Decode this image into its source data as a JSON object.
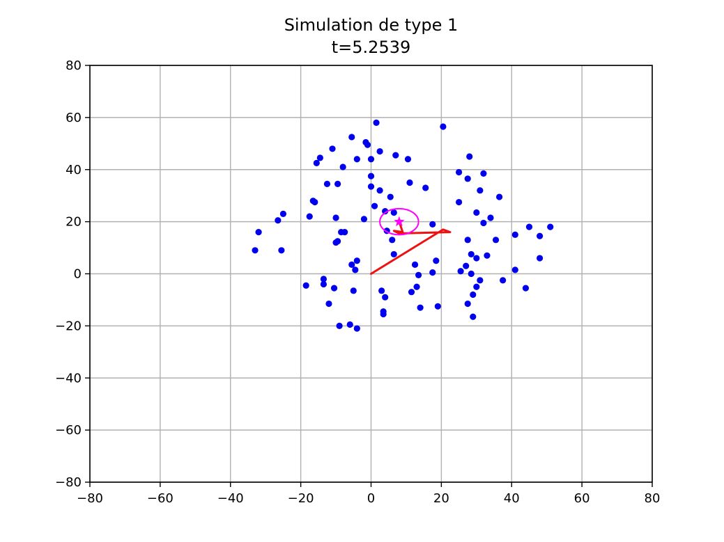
{
  "chart_data": {
    "type": "scatter",
    "title": "Simulation de type 1",
    "subtitle": "t=5.2539",
    "xlabel": "",
    "ylabel": "",
    "xlim": [
      -80,
      80
    ],
    "ylim": [
      -80,
      80
    ],
    "grid": true,
    "xticks": [
      "−80",
      "−60",
      "−40",
      "−20",
      "0",
      "20",
      "40",
      "60",
      "80"
    ],
    "yticks": [
      "80",
      "60",
      "40",
      "20",
      "0",
      "−20",
      "−40",
      "−60",
      "−80"
    ],
    "colors": {
      "points": "#0000ee",
      "path": "#ee1111",
      "target": "#ff00ff",
      "grid": "#b0b0b0"
    },
    "points": [
      [
        1.5,
        58
      ],
      [
        20.5,
        56.5
      ],
      [
        -5.5,
        52.5
      ],
      [
        -1.5,
        50.5
      ],
      [
        -1,
        49.5
      ],
      [
        -11,
        48
      ],
      [
        2.5,
        47
      ],
      [
        7,
        45.5
      ],
      [
        10.5,
        44
      ],
      [
        -14.5,
        44.5
      ],
      [
        -15.5,
        42.5
      ],
      [
        -8,
        41
      ],
      [
        -4,
        44
      ],
      [
        0,
        44
      ],
      [
        28,
        45
      ],
      [
        25,
        39
      ],
      [
        32,
        38.5
      ],
      [
        27.5,
        36.5
      ],
      [
        0,
        37.5
      ],
      [
        -12.5,
        34.5
      ],
      [
        -9.5,
        34.5
      ],
      [
        11,
        35
      ],
      [
        15.5,
        33
      ],
      [
        31,
        32
      ],
      [
        0,
        33.5
      ],
      [
        2.5,
        32
      ],
      [
        5.5,
        29.5
      ],
      [
        36.5,
        29.5
      ],
      [
        -16.5,
        28
      ],
      [
        -16,
        27.5
      ],
      [
        25,
        27.5
      ],
      [
        1,
        26
      ],
      [
        30,
        23.5
      ],
      [
        -25,
        23
      ],
      [
        4,
        24
      ],
      [
        6.5,
        23.5
      ],
      [
        -10,
        21.5
      ],
      [
        -2,
        21
      ],
      [
        34,
        21.5
      ],
      [
        -17.5,
        22
      ],
      [
        -26.5,
        20.5
      ],
      [
        32,
        19.5
      ],
      [
        17.5,
        19
      ],
      [
        45,
        18
      ],
      [
        51,
        18
      ],
      [
        -32,
        16
      ],
      [
        -8.5,
        16
      ],
      [
        -7.5,
        16
      ],
      [
        4.5,
        16.5
      ],
      [
        41,
        15
      ],
      [
        48,
        14.5
      ],
      [
        6,
        13
      ],
      [
        -10,
        12
      ],
      [
        -9.5,
        12.5
      ],
      [
        27.5,
        13
      ],
      [
        35.5,
        13
      ],
      [
        -33,
        9
      ],
      [
        -25.5,
        9
      ],
      [
        6.5,
        7.5
      ],
      [
        28.5,
        7.5
      ],
      [
        33,
        7
      ],
      [
        30,
        6
      ],
      [
        48,
        6
      ],
      [
        18.5,
        5
      ],
      [
        -4,
        5
      ],
      [
        -5.5,
        3.5
      ],
      [
        12.5,
        3.5
      ],
      [
        27,
        3
      ],
      [
        41,
        1.5
      ],
      [
        -4.5,
        1.5
      ],
      [
        17.5,
        0.5
      ],
      [
        25.5,
        1
      ],
      [
        13.5,
        -0.5
      ],
      [
        28.5,
        0
      ],
      [
        -13.5,
        -2
      ],
      [
        31,
        -2.5
      ],
      [
        37.5,
        -2.5
      ],
      [
        -13.5,
        -4
      ],
      [
        -18.5,
        -4.5
      ],
      [
        13,
        -5
      ],
      [
        30,
        -5
      ],
      [
        44,
        -5.5
      ],
      [
        -10.5,
        -5.5
      ],
      [
        -5,
        -6.5
      ],
      [
        3,
        -6.5
      ],
      [
        11.5,
        -7
      ],
      [
        4,
        -9
      ],
      [
        29,
        -8
      ],
      [
        -12,
        -11.5
      ],
      [
        27.5,
        -11.5
      ],
      [
        14,
        -13
      ],
      [
        19,
        -12.5
      ],
      [
        3.5,
        -14.5
      ],
      [
        3.5,
        -15.5
      ],
      [
        29,
        -16.5
      ],
      [
        -9,
        -20
      ],
      [
        -6,
        -19.5
      ],
      [
        -4,
        -21
      ]
    ],
    "path": [
      [
        0,
        0
      ],
      [
        20.5,
        17
      ],
      [
        22.5,
        16
      ],
      [
        8,
        15.5
      ],
      [
        6.5,
        16.5
      ],
      [
        9,
        16
      ],
      [
        8,
        20
      ]
    ],
    "target": {
      "center": [
        8,
        20
      ],
      "radius_x": 5.5,
      "radius_y": 5
    }
  }
}
